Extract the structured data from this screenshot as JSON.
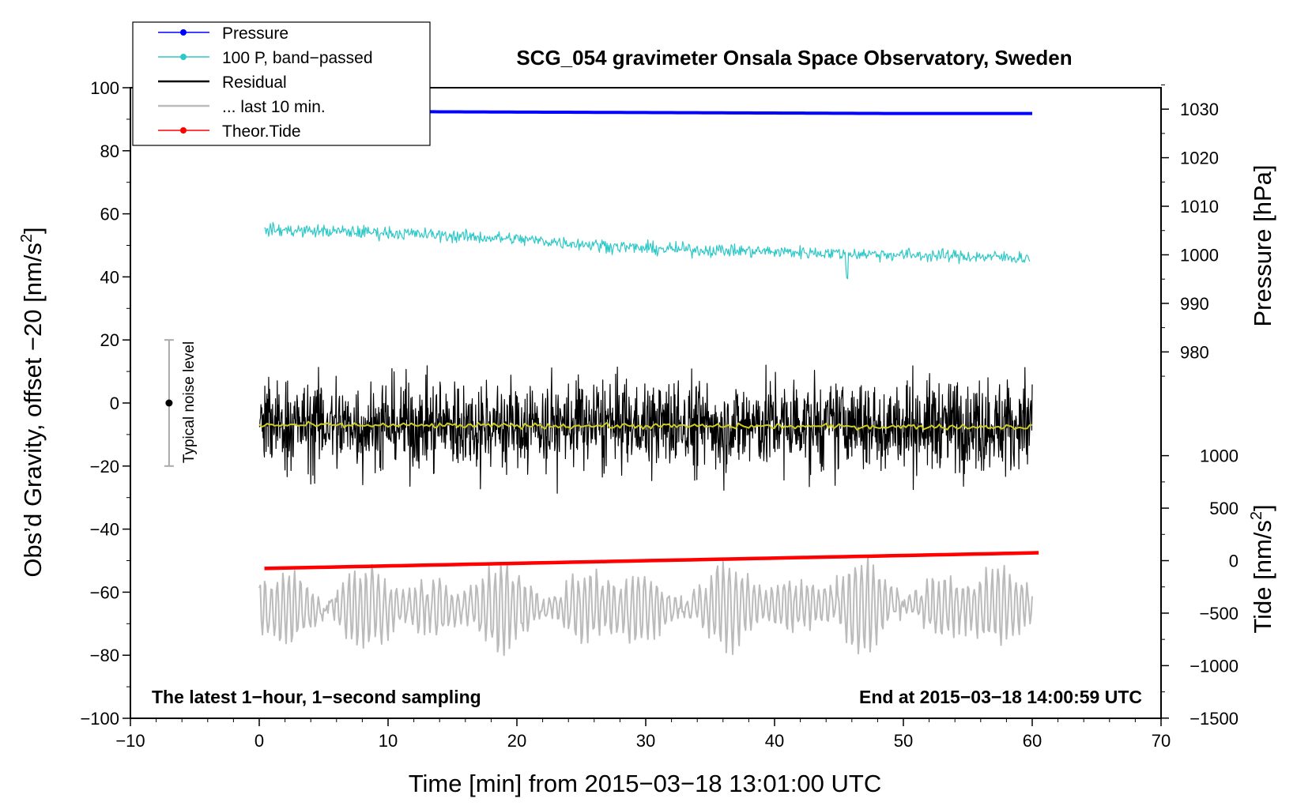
{
  "chart_data": {
    "type": "line",
    "title": "SCG_054 gravimeter Onsala Space Observatory, Sweden",
    "xlabel": "Time [min] from 2015−03−18 13:01:00 UTC",
    "ylabel_left": "Obs’d Gravity, offset −20 [nm/s",
    "ylabel_left_sup": "2",
    "ylabel_left_close": "]",
    "ylabel_right_pressure": "Pressure [hPa]",
    "ylabel_right_tide": "Tide [nm/s",
    "ylabel_right_tide_sup": "2",
    "ylabel_right_tide_close": "]",
    "xlim": [
      -10,
      70
    ],
    "ylim_left": [
      -100,
      100
    ],
    "x_ticks": [
      -10,
      0,
      10,
      20,
      30,
      40,
      50,
      60,
      70
    ],
    "x_tick_labels": [
      "−10",
      "0",
      "10",
      "20",
      "30",
      "40",
      "50",
      "60",
      "70"
    ],
    "y_left_ticks": [
      100,
      80,
      60,
      40,
      20,
      0,
      -20,
      -40,
      -60,
      -80,
      -100
    ],
    "y_left_tick_labels": [
      "100",
      "80",
      "60",
      "40",
      "20",
      "0",
      "−20",
      "−40",
      "−60",
      "−80",
      "−100"
    ],
    "pressure_axis": {
      "ticks": [
        1030,
        1020,
        1010,
        1000,
        990,
        980
      ],
      "tick_labels": [
        "1030",
        "1020",
        "1010",
        "1000",
        "990",
        "980"
      ],
      "left_value_at_1000hPa": 47,
      "left_units_per_hPa": 1.54
    },
    "tide_axis": {
      "ticks": [
        1000,
        500,
        0,
        -500,
        -1000,
        -1500
      ],
      "tick_labels": [
        "1000",
        "500",
        "0",
        "−500",
        "−1000",
        "−1500"
      ],
      "left_value_at_0": -50,
      "left_units_per_1000": 33.3
    },
    "series": [
      {
        "name": "Pressure",
        "color": "#0000ff",
        "unit": "hPa",
        "x": [
          0,
          10,
          20,
          30,
          40,
          50,
          60
        ],
        "values": [
          1029.5,
          1029.5,
          1029.4,
          1029.3,
          1029.2,
          1029.1,
          1029.1
        ]
      },
      {
        "name": "100 P, band−passed",
        "color": "#2ec8c8",
        "unit": "nm/s2",
        "x": [
          0,
          10,
          20,
          30,
          40,
          50,
          60
        ],
        "values": [
          55,
          54,
          52,
          49,
          48,
          47,
          46
        ],
        "noise_amplitude": 2.2
      },
      {
        "name": "Residual",
        "color": "#000000",
        "unit": "nm/s2",
        "x": [
          0,
          60
        ],
        "values": [
          -7,
          -7
        ],
        "noise_amplitude": 18
      },
      {
        "name": "Residual smoothed",
        "color": "#cccc22",
        "unit": "nm/s2",
        "x": [
          0,
          60
        ],
        "values": [
          -7,
          -7.6
        ]
      },
      {
        "name": "... last 10 min.",
        "color": "#bbbbbb",
        "unit": "nm/s2",
        "x": [
          0,
          60
        ],
        "values": [
          -65,
          -64
        ],
        "noise_amplitude": 14
      },
      {
        "name": "Theor.Tide",
        "color": "#ff0000",
        "unit": "nm/s2",
        "x": [
          0,
          60.5
        ],
        "values": [
          -52.5,
          -47.5
        ]
      }
    ],
    "legend": [
      {
        "label": "Pressure",
        "color": "#0000ff",
        "marker": true
      },
      {
        "label": "100 P, band−passed",
        "color": "#2ec8c8",
        "marker": true
      },
      {
        "label": "Residual",
        "color": "#000000",
        "marker": false
      },
      {
        "label": "... last 10 min.",
        "color": "#bbbbbb",
        "marker": false
      },
      {
        "label": "Theor.Tide",
        "color": "#ff0000",
        "marker": true
      }
    ],
    "noise_bar": {
      "label": "Typical noise level",
      "x": -7,
      "center": 0,
      "low": -20,
      "high": 20
    },
    "annotations": {
      "bottom_left": "The latest 1−hour, 1−second sampling",
      "bottom_right": "End at 2015−03−18 14:00:59 UTC"
    }
  }
}
